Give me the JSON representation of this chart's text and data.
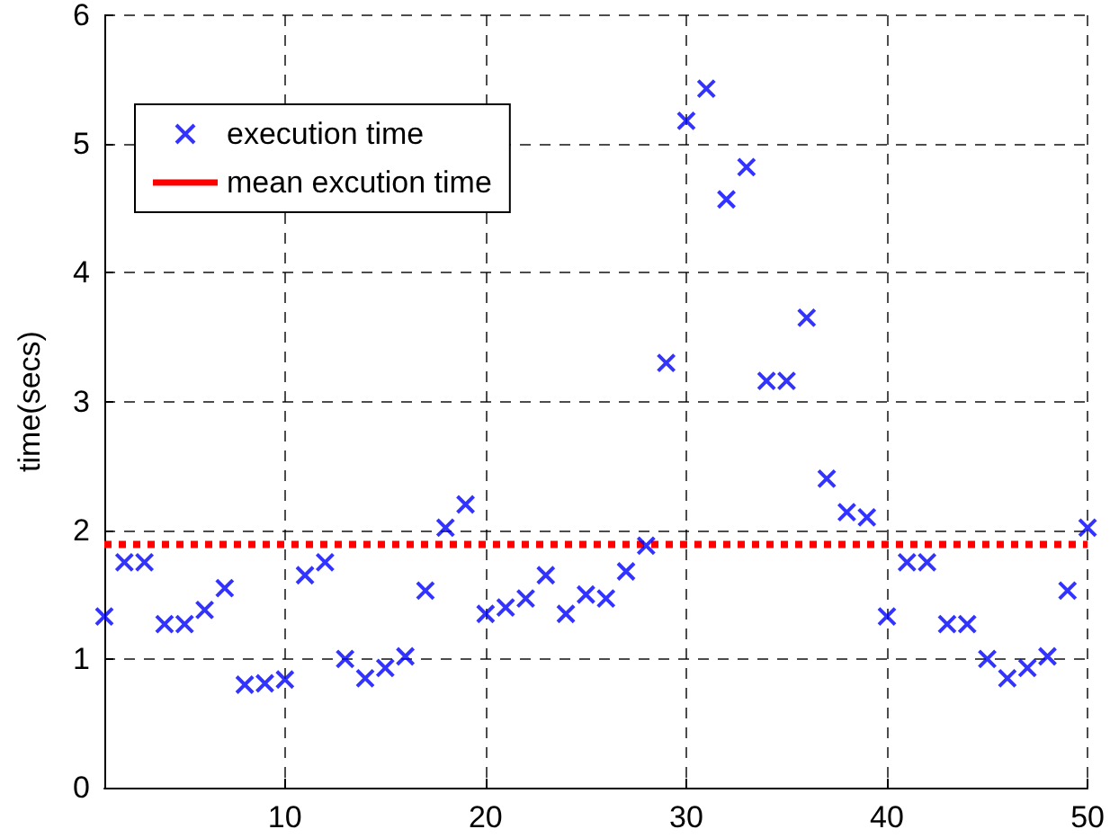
{
  "chart_data": {
    "type": "scatter",
    "ylabel": "time(secs)",
    "x": [
      1,
      2,
      3,
      4,
      5,
      6,
      7,
      8,
      9,
      10,
      11,
      12,
      13,
      14,
      15,
      16,
      17,
      18,
      19,
      20,
      21,
      22,
      23,
      24,
      25,
      26,
      27,
      28,
      29,
      30,
      31,
      32,
      33,
      34,
      35,
      36,
      37,
      38,
      39,
      40,
      41,
      42,
      43,
      44,
      45,
      46,
      47,
      48,
      49,
      50
    ],
    "series": [
      {
        "name": "execution time",
        "color": "#0000ff",
        "values": [
          1.33,
          1.75,
          1.75,
          1.27,
          1.27,
          1.38,
          1.55,
          0.8,
          0.81,
          0.84,
          1.65,
          1.75,
          1.0,
          0.85,
          0.93,
          1.02,
          1.53,
          2.02,
          2.2,
          1.35,
          1.4,
          1.47,
          1.65,
          1.35,
          1.5,
          1.47,
          1.68,
          1.88,
          3.3,
          5.18,
          5.43,
          4.57,
          4.82,
          3.16,
          3.16,
          3.65,
          2.4,
          2.14,
          2.1,
          1.33,
          1.75,
          1.75,
          1.27,
          1.27,
          1.0,
          0.85,
          0.93,
          1.02,
          1.53,
          2.02
        ]
      }
    ],
    "ref_lines": [
      {
        "axis": "y",
        "value": 1.89,
        "label": "mean excution time",
        "color": "#ff0000",
        "line_style": "dotted"
      }
    ],
    "xlim": [
      1,
      50
    ],
    "xticks": [
      10,
      20,
      30,
      40,
      50
    ],
    "ylim": [
      0,
      6
    ],
    "yticks": [
      0,
      1,
      2,
      3,
      4,
      5,
      6
    ],
    "grid": true,
    "legend": "top left",
    "marker": "cross"
  }
}
